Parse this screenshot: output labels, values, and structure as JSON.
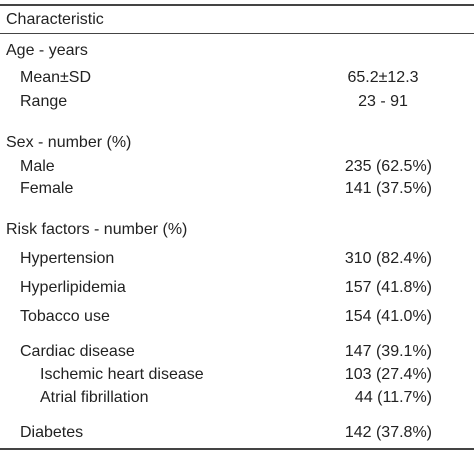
{
  "table": {
    "header": "Characteristic",
    "rows": [
      {
        "label": "Age - years"
      },
      {
        "label": "Mean±SD",
        "value": "65.2±12.3"
      },
      {
        "label": "Range",
        "value": "23 - 91"
      },
      {
        "label": "Sex - number (%)"
      },
      {
        "label": "Male",
        "value": "235 (62.5%)"
      },
      {
        "label": "Female",
        "value": "141 (37.5%)"
      },
      {
        "label": "Risk factors - number (%)"
      },
      {
        "label": "Hypertension",
        "value": "310 (82.4%)"
      },
      {
        "label": "Hyperlipidemia",
        "value": "157 (41.8%)"
      },
      {
        "label": "Tobacco use",
        "value": "154 (41.0%)"
      },
      {
        "label": "Cardiac disease",
        "value": "147 (39.1%)"
      },
      {
        "label": "Ischemic heart disease",
        "value": "103 (27.4%)"
      },
      {
        "label": "Atrial fibrillation",
        "value": "44 (11.7%)"
      },
      {
        "label": "Diabetes",
        "value": "142 (37.8%)"
      }
    ]
  }
}
